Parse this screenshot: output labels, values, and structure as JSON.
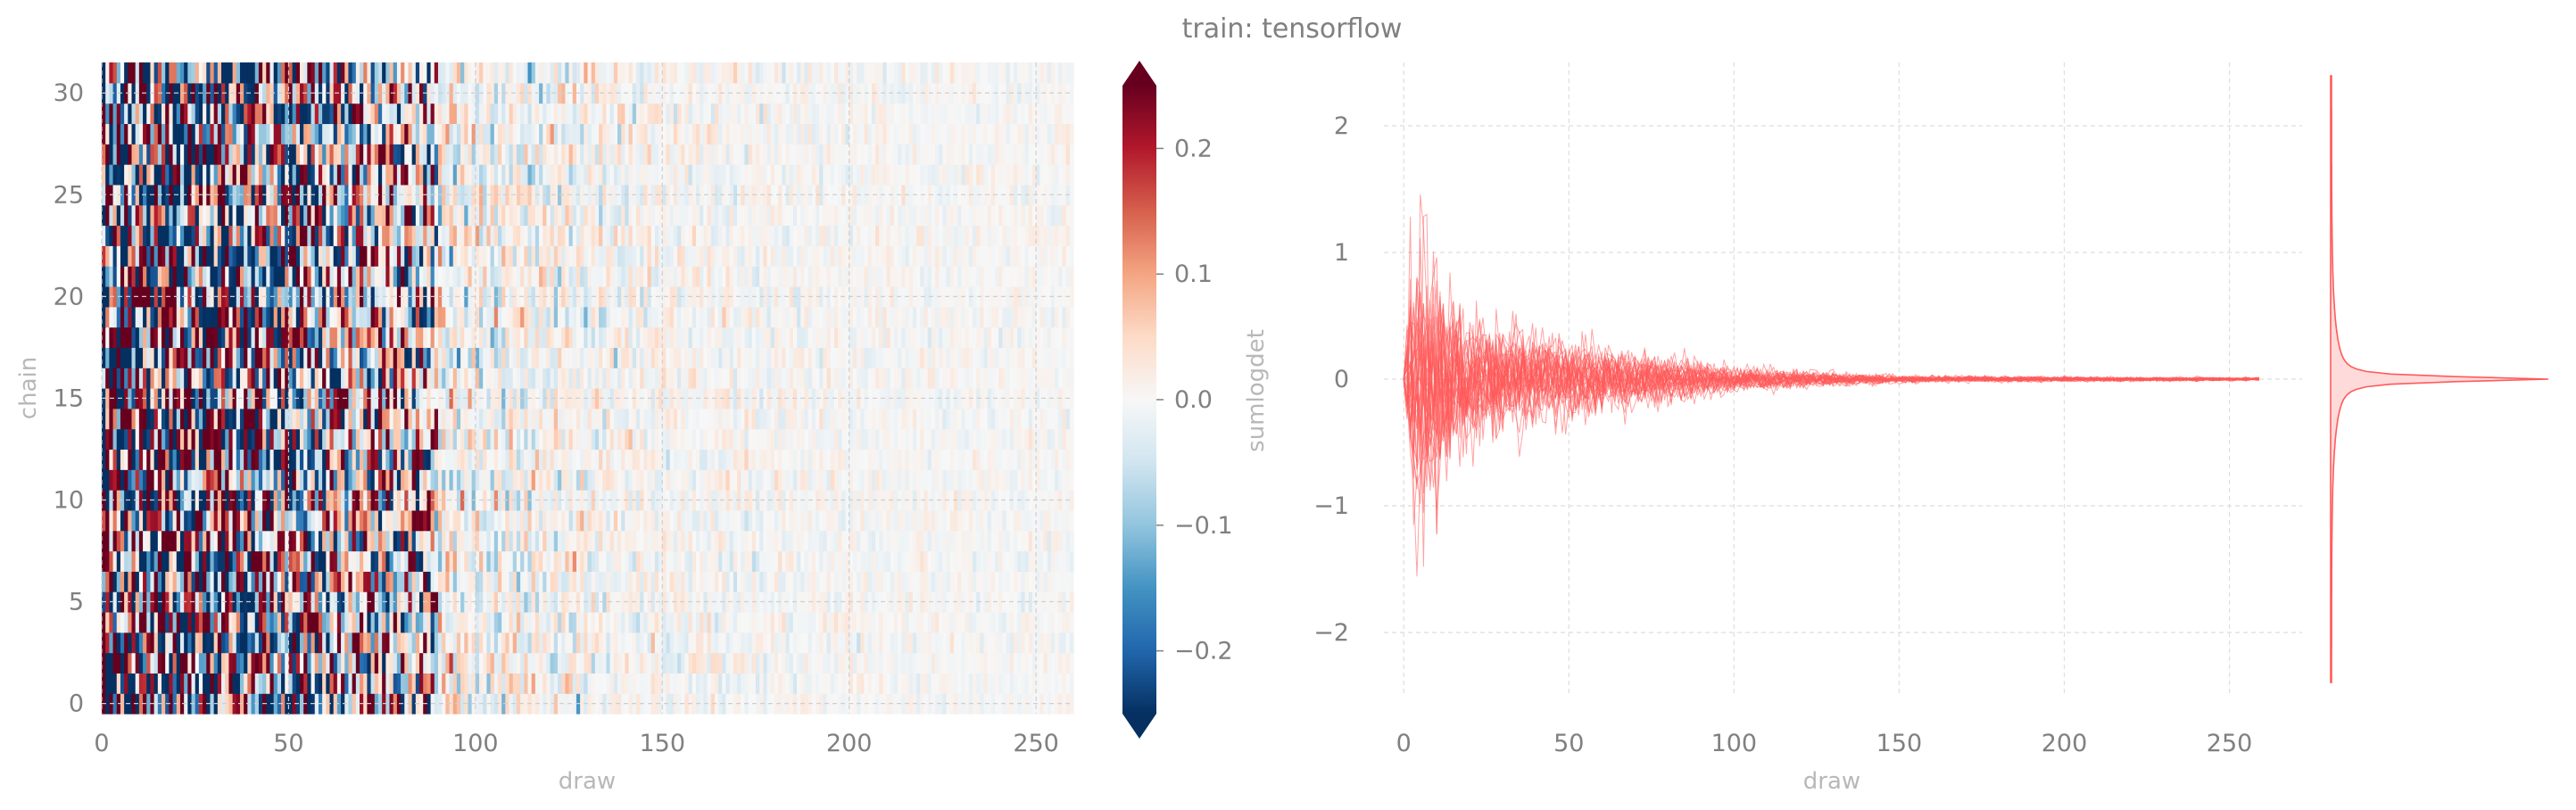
{
  "figure": {
    "title": "train: tensorflow",
    "text_color": "#808080",
    "label_color": "#b8b8b8",
    "grid_color": "#d9d9d9"
  },
  "chart_data": [
    {
      "type": "heatmap",
      "xlabel": "draw",
      "ylabel": "chain",
      "xlim": [
        0,
        260
      ],
      "ylim": [
        -0.5,
        31.5
      ],
      "n_draws": 260,
      "n_chains": 32,
      "xticks": [
        0,
        50,
        100,
        150,
        200,
        250
      ],
      "yticks": [
        0,
        5,
        10,
        15,
        20,
        25,
        30
      ],
      "colormap": "RdBu_r",
      "colormap_stops": [
        "#053061",
        "#2166ac",
        "#4393c3",
        "#92c5de",
        "#d1e5f0",
        "#f7f7f7",
        "#fddbc7",
        "#f4a582",
        "#d6604d",
        "#b2182b",
        "#67001f"
      ],
      "value_range": [
        -0.25,
        0.25
      ],
      "amplitude_profile": {
        "draws": [
          0,
          10,
          20,
          40,
          60,
          80,
          100,
          150,
          200,
          260
        ],
        "abs_value": [
          0.25,
          0.25,
          0.24,
          0.2,
          0.14,
          0.09,
          0.05,
          0.025,
          0.015,
          0.012
        ]
      },
      "grid": true
    },
    {
      "type": "colorbar",
      "label": "sumlogdet",
      "range": [
        -0.25,
        0.25
      ],
      "ticks": [
        -0.2,
        -0.1,
        0.0,
        0.1,
        0.2
      ],
      "tick_labels": [
        "−0.2",
        "−0.1",
        "0.0",
        "0.1",
        "0.2"
      ],
      "extend": "both"
    },
    {
      "type": "line",
      "xlabel": "draw",
      "ylabel": "",
      "xlim": [
        -6,
        272
      ],
      "ylim": [
        -2.5,
        2.5
      ],
      "xticks": [
        0,
        50,
        100,
        150,
        200,
        250
      ],
      "yticks": [
        -2,
        -1,
        0,
        1,
        2
      ],
      "ytick_labels": [
        "−2",
        "−1",
        "0",
        "1",
        "2"
      ],
      "n_draws": 260,
      "n_chains": 32,
      "color": "#ff5a5a",
      "amplitude_profile": {
        "draws": [
          0,
          3,
          10,
          20,
          40,
          60,
          80,
          100,
          150,
          200,
          260
        ],
        "max_abs": [
          0.05,
          1.9,
          1.35,
          0.8,
          0.55,
          0.4,
          0.28,
          0.15,
          0.04,
          0.03,
          0.02
        ]
      },
      "grid": true
    },
    {
      "type": "density",
      "orientation": "vertical",
      "ylim": [
        -2.5,
        2.5
      ],
      "range": [
        -2.4,
        2.4
      ],
      "peak": 0.0,
      "color": "#ff5a5a",
      "fill_color": "#ffd6d6"
    }
  ]
}
